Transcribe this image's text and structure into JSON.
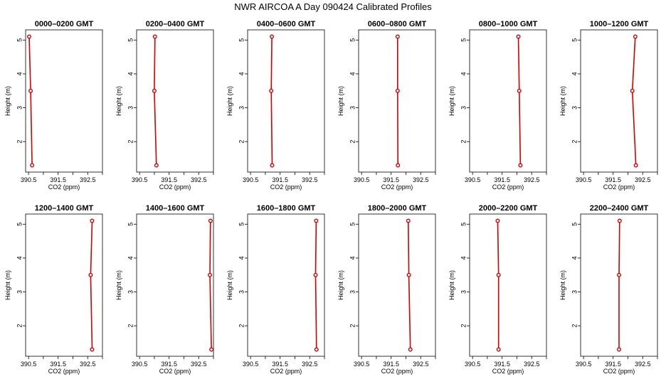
{
  "title": "NWR AIRCOA A  Day 090424  Calibrated Profiles",
  "colors": {
    "series": "#d40000",
    "axis": "#000000"
  },
  "chart_data": [
    {
      "type": "line",
      "title": "0000–0200 GMT",
      "xlabel": "CO2 (ppm)",
      "ylabel": "Height (m)",
      "xlim": [
        390.4,
        393.0
      ],
      "ylim": [
        1.1,
        5.3
      ],
      "xticks": [
        "390.5",
        "391.5",
        "392.5"
      ],
      "yticks": [
        "2",
        "3",
        "4",
        "5"
      ],
      "x": [
        390.52,
        390.57,
        390.62
      ],
      "y": [
        5.1,
        3.5,
        1.3
      ]
    },
    {
      "type": "line",
      "title": "0200–0400 GMT",
      "xlabel": "CO2 (ppm)",
      "ylabel": "Height (m)",
      "xlim": [
        390.4,
        393.0
      ],
      "ylim": [
        1.1,
        5.3
      ],
      "xticks": [
        "390.5",
        "391.5",
        "392.5"
      ],
      "yticks": [
        "2",
        "3",
        "4",
        "5"
      ],
      "x": [
        391.02,
        391.0,
        391.07
      ],
      "y": [
        5.1,
        3.5,
        1.3
      ]
    },
    {
      "type": "line",
      "title": "0400–0600 GMT",
      "xlabel": "CO2 (ppm)",
      "ylabel": "Height (m)",
      "xlim": [
        390.4,
        393.0
      ],
      "ylim": [
        1.1,
        5.3
      ],
      "xticks": [
        "390.5",
        "391.5",
        "392.5"
      ],
      "yticks": [
        "2",
        "3",
        "4",
        "5"
      ],
      "x": [
        391.22,
        391.2,
        391.23
      ],
      "y": [
        5.1,
        3.5,
        1.3
      ]
    },
    {
      "type": "line",
      "title": "0600–0800 GMT",
      "xlabel": "CO2 (ppm)",
      "ylabel": "Height (m)",
      "xlim": [
        390.4,
        393.0
      ],
      "ylim": [
        1.1,
        5.3
      ],
      "xticks": [
        "390.5",
        "391.5",
        "392.5"
      ],
      "yticks": [
        "2",
        "3",
        "4",
        "5"
      ],
      "x": [
        391.72,
        391.72,
        391.73
      ],
      "y": [
        5.1,
        3.5,
        1.3
      ]
    },
    {
      "type": "line",
      "title": "0800–1000 GMT",
      "xlabel": "CO2 (ppm)",
      "ylabel": "Height (m)",
      "xlim": [
        390.4,
        393.0
      ],
      "ylim": [
        1.1,
        5.3
      ],
      "xticks": [
        "390.5",
        "391.5",
        "392.5"
      ],
      "yticks": [
        "2",
        "3",
        "4",
        "5"
      ],
      "x": [
        392.05,
        392.08,
        392.12
      ],
      "y": [
        5.1,
        3.5,
        1.3
      ]
    },
    {
      "type": "line",
      "title": "1000–1200 GMT",
      "xlabel": "CO2 (ppm)",
      "ylabel": "Height (m)",
      "xlim": [
        390.4,
        393.0
      ],
      "ylim": [
        1.1,
        5.3
      ],
      "xticks": [
        "390.5",
        "391.5",
        "392.5"
      ],
      "yticks": [
        "2",
        "3",
        "4",
        "5"
      ],
      "x": [
        392.25,
        392.15,
        392.27
      ],
      "y": [
        5.1,
        3.5,
        1.3
      ]
    },
    {
      "type": "line",
      "title": "1200–1400 GMT",
      "xlabel": "CO2 (ppm)",
      "ylabel": "Height (m)",
      "xlim": [
        390.4,
        393.0
      ],
      "ylim": [
        1.1,
        5.3
      ],
      "xticks": [
        "390.5",
        "391.5",
        "392.5"
      ],
      "yticks": [
        "2",
        "3",
        "4",
        "5"
      ],
      "x": [
        392.65,
        392.6,
        392.65
      ],
      "y": [
        5.1,
        3.5,
        1.3
      ]
    },
    {
      "type": "line",
      "title": "1400–1600 GMT",
      "xlabel": "CO2 (ppm)",
      "ylabel": "Height (m)",
      "xlim": [
        390.4,
        393.0
      ],
      "ylim": [
        1.1,
        5.3
      ],
      "xticks": [
        "390.5",
        "391.5",
        "392.5"
      ],
      "yticks": [
        "2",
        "3",
        "4",
        "5"
      ],
      "x": [
        392.9,
        392.88,
        392.93
      ],
      "y": [
        5.1,
        3.5,
        1.3
      ]
    },
    {
      "type": "line",
      "title": "1600–1800 GMT",
      "xlabel": "CO2 (ppm)",
      "ylabel": "Height (m)",
      "xlim": [
        390.4,
        393.0
      ],
      "ylim": [
        1.1,
        5.3
      ],
      "xticks": [
        "390.5",
        "391.5",
        "392.5"
      ],
      "yticks": [
        "2",
        "3",
        "4",
        "5"
      ],
      "x": [
        392.72,
        392.7,
        392.73
      ],
      "y": [
        5.1,
        3.5,
        1.3
      ]
    },
    {
      "type": "line",
      "title": "1800–2000 GMT",
      "xlabel": "CO2 (ppm)",
      "ylabel": "Height (m)",
      "xlim": [
        390.4,
        393.0
      ],
      "ylim": [
        1.1,
        5.3
      ],
      "xticks": [
        "390.5",
        "391.5",
        "392.5"
      ],
      "yticks": [
        "2",
        "3",
        "4",
        "5"
      ],
      "x": [
        392.08,
        392.1,
        392.15
      ],
      "y": [
        5.1,
        3.5,
        1.3
      ]
    },
    {
      "type": "line",
      "title": "2000–2200 GMT",
      "xlabel": "CO2 (ppm)",
      "ylabel": "Height (m)",
      "xlim": [
        390.4,
        393.0
      ],
      "ylim": [
        1.1,
        5.3
      ],
      "xticks": [
        "390.5",
        "391.5",
        "392.5"
      ],
      "yticks": [
        "2",
        "3",
        "4",
        "5"
      ],
      "x": [
        391.35,
        391.38,
        391.38
      ],
      "y": [
        5.1,
        3.5,
        1.3
      ]
    },
    {
      "type": "line",
      "title": "2200–2400 GMT",
      "xlabel": "CO2 (ppm)",
      "ylabel": "Height (m)",
      "xlim": [
        390.4,
        393.0
      ],
      "ylim": [
        1.1,
        5.3
      ],
      "xticks": [
        "390.5",
        "391.5",
        "392.5"
      ],
      "yticks": [
        "2",
        "3",
        "4",
        "5"
      ],
      "x": [
        391.72,
        391.7,
        391.7
      ],
      "y": [
        5.1,
        3.5,
        1.3
      ]
    }
  ]
}
